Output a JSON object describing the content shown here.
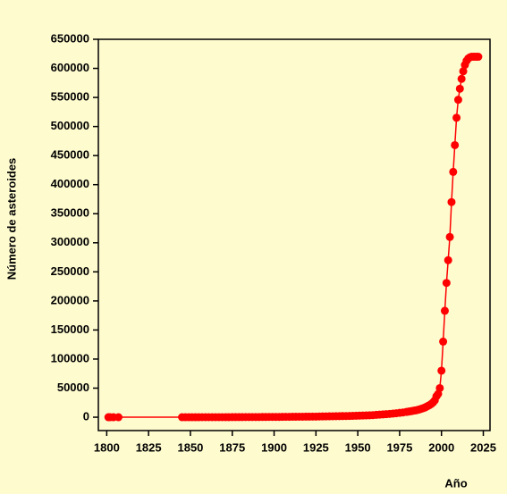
{
  "chart_data": {
    "type": "line",
    "x_label": "Año",
    "y_label": "Número de asteroides",
    "xlim": [
      1795,
      2029
    ],
    "ylim": [
      -23000,
      650000
    ],
    "xticks": [
      1800,
      1825,
      1850,
      1875,
      1900,
      1925,
      1950,
      1975,
      2000,
      2025
    ],
    "yticks": [
      0,
      50000,
      100000,
      150000,
      200000,
      250000,
      300000,
      350000,
      400000,
      450000,
      500000,
      550000,
      600000,
      650000
    ],
    "grid": false,
    "series": [
      {
        "color": "#ff0000",
        "x": [
          1801,
          1802,
          1804,
          1807,
          1845,
          1847,
          1849,
          1851,
          1853,
          1855,
          1857,
          1859,
          1861,
          1863,
          1865,
          1867,
          1869,
          1871,
          1873,
          1875,
          1877,
          1879,
          1881,
          1883,
          1885,
          1887,
          1889,
          1891,
          1893,
          1895,
          1897,
          1899,
          1901,
          1903,
          1905,
          1907,
          1909,
          1911,
          1913,
          1915,
          1917,
          1919,
          1921,
          1923,
          1925,
          1927,
          1929,
          1931,
          1933,
          1935,
          1937,
          1939,
          1941,
          1943,
          1945,
          1947,
          1949,
          1951,
          1953,
          1955,
          1957,
          1959,
          1961,
          1963,
          1965,
          1967,
          1969,
          1971,
          1973,
          1975,
          1977,
          1979,
          1980,
          1981,
          1982,
          1983,
          1984,
          1985,
          1986,
          1987,
          1988,
          1989,
          1990,
          1991,
          1992,
          1993,
          1994,
          1995,
          1996,
          1997,
          1998,
          1999,
          2000,
          2001,
          2002,
          2003,
          2004,
          2005,
          2006,
          2007,
          2008,
          2009,
          2010,
          2011,
          2012,
          2013,
          2014,
          2015,
          2016,
          2017,
          2018,
          2019,
          2020,
          2021,
          2022
        ],
        "values": [
          1,
          2,
          3,
          4,
          6,
          8,
          10,
          15,
          26,
          37,
          50,
          57,
          66,
          79,
          85,
          95,
          109,
          115,
          134,
          156,
          175,
          199,
          220,
          234,
          251,
          271,
          287,
          320,
          380,
          410,
          432,
          450,
          480,
          520,
          580,
          660,
          700,
          750,
          800,
          850,
          890,
          930,
          980,
          1030,
          1100,
          1200,
          1300,
          1400,
          1500,
          1600,
          1700,
          1800,
          1900,
          2000,
          2100,
          2300,
          2500,
          2700,
          2900,
          3100,
          3300,
          3600,
          4000,
          4400,
          4800,
          5200,
          5700,
          6200,
          6800,
          7500,
          8200,
          9000,
          9500,
          10000,
          10500,
          11000,
          11500,
          12000,
          12800,
          13500,
          14500,
          15500,
          16500,
          18000,
          19500,
          21000,
          23000,
          25500,
          29000,
          36000,
          40000,
          50000,
          80000,
          130000,
          183000,
          231000,
          270000,
          310000,
          370000,
          422000,
          468000,
          515000,
          546000,
          565000,
          582000,
          595000,
          606000,
          613000,
          617000,
          619000,
          620000,
          620000,
          620000,
          620000,
          620000
        ]
      }
    ]
  }
}
